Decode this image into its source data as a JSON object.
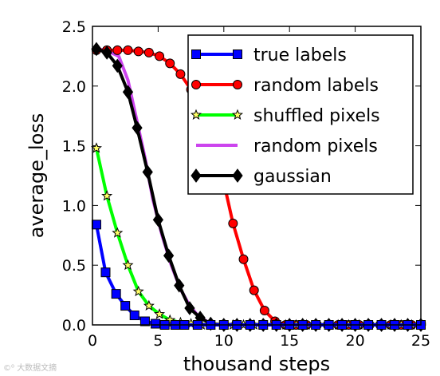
{
  "chart_data": {
    "type": "line",
    "xlabel": "thousand steps",
    "ylabel": "average_loss",
    "xlim": [
      0,
      25
    ],
    "ylim": [
      0,
      2.5
    ],
    "xticks": [
      0,
      5,
      10,
      15,
      20,
      25
    ],
    "yticks": [
      0.0,
      0.5,
      1.0,
      1.5,
      2.0,
      2.5
    ],
    "xtick_labels": [
      "0",
      "5",
      "10",
      "15",
      "20",
      "25"
    ],
    "ytick_labels": [
      "0.0",
      "0.5",
      "1.0",
      "1.5",
      "2.0",
      "2.5"
    ],
    "legend_position": "top-right",
    "series": [
      {
        "name": "true labels",
        "color": "#0000ff",
        "marker": "square",
        "x": [
          0.3,
          1.0,
          1.8,
          2.5,
          3.2,
          4.0,
          4.8,
          5.5,
          6.3,
          7.0,
          8.0,
          9.0,
          10.0,
          11.0,
          12.0,
          13.0,
          14.0,
          15.0,
          16.0,
          17.0,
          18.0,
          19.0,
          20.0,
          21.0,
          22.0,
          23.0,
          24.0,
          25.0
        ],
        "y": [
          0.84,
          0.44,
          0.26,
          0.16,
          0.08,
          0.03,
          0.01,
          0.0,
          0.0,
          0.0,
          0.0,
          0.0,
          0.0,
          0.0,
          0.0,
          0.0,
          0.0,
          0.0,
          0.0,
          0.0,
          0.0,
          0.0,
          0.0,
          0.0,
          0.0,
          0.0,
          0.0,
          0.0
        ]
      },
      {
        "name": "random labels",
        "color": "#ff0000",
        "marker": "circle",
        "x": [
          0.3,
          1.1,
          1.9,
          2.7,
          3.5,
          4.3,
          5.1,
          5.9,
          6.7,
          7.5,
          8.3,
          9.1,
          9.9,
          10.7,
          11.5,
          12.3,
          13.1,
          13.9,
          14.7,
          15.5,
          16.3,
          17.1,
          17.9,
          18.7,
          19.5,
          20.3,
          21.1,
          21.9,
          22.7,
          23.5,
          24.3,
          25.0
        ],
        "y": [
          2.3,
          2.3,
          2.3,
          2.3,
          2.29,
          2.28,
          2.25,
          2.19,
          2.1,
          1.97,
          1.79,
          1.55,
          1.24,
          0.85,
          0.55,
          0.29,
          0.12,
          0.03,
          0.0,
          0.0,
          0.0,
          0.0,
          0.0,
          0.0,
          0.0,
          0.0,
          0.0,
          0.0,
          0.0,
          0.0,
          0.0,
          0.0
        ]
      },
      {
        "name": "shuffled pixels",
        "color": "#00ff00",
        "marker": "star",
        "x": [
          0.3,
          1.1,
          1.9,
          2.7,
          3.5,
          4.3,
          5.1,
          5.9,
          6.7,
          7.5,
          8.3,
          9.1,
          9.9,
          10.7,
          11.5,
          12.3,
          13.1,
          13.9,
          14.7,
          15.5,
          16.3,
          17.1,
          17.9,
          18.7,
          19.5,
          20.3,
          21.1,
          21.9,
          22.7,
          23.5,
          24.3,
          25.0
        ],
        "y": [
          1.48,
          1.08,
          0.77,
          0.5,
          0.28,
          0.16,
          0.09,
          0.04,
          0.02,
          0.01,
          0.0,
          0.0,
          0.0,
          0.0,
          0.0,
          0.0,
          0.0,
          0.0,
          0.0,
          0.0,
          0.0,
          0.0,
          0.0,
          0.0,
          0.0,
          0.0,
          0.0,
          0.0,
          0.0,
          0.0,
          0.0,
          0.0
        ]
      },
      {
        "name": "random pixels",
        "color": "#cc44ee",
        "marker": "none",
        "x": [
          0.3,
          1.0,
          2.0,
          2.7,
          3.3,
          4.0,
          4.6,
          5.3,
          6.0,
          6.7,
          7.3,
          8.0,
          8.7,
          9.3,
          10.0,
          25.0
        ],
        "y": [
          2.31,
          2.3,
          2.25,
          2.05,
          1.75,
          1.4,
          1.05,
          0.75,
          0.5,
          0.3,
          0.18,
          0.08,
          0.03,
          0.0,
          0.0,
          0.0
        ]
      },
      {
        "name": "gaussian",
        "color": "#000000",
        "marker": "diamond",
        "x": [
          0.3,
          1.1,
          1.9,
          2.7,
          3.4,
          4.2,
          5.0,
          5.8,
          6.6,
          7.4,
          8.2,
          9.0,
          10.0,
          11.0,
          12.0,
          13.0,
          14.0,
          15.0,
          16.0,
          17.0,
          18.0,
          19.0,
          20.0,
          21.0,
          22.0,
          23.0,
          24.0,
          25.0
        ],
        "y": [
          2.31,
          2.28,
          2.17,
          1.95,
          1.65,
          1.28,
          0.88,
          0.58,
          0.33,
          0.14,
          0.06,
          0.01,
          0.0,
          0.0,
          0.0,
          0.0,
          0.0,
          0.0,
          0.0,
          0.0,
          0.0,
          0.0,
          0.0,
          0.0,
          0.0,
          0.0,
          0.0,
          0.0
        ]
      }
    ]
  },
  "watermark": "©⁰ 大数据文摘"
}
